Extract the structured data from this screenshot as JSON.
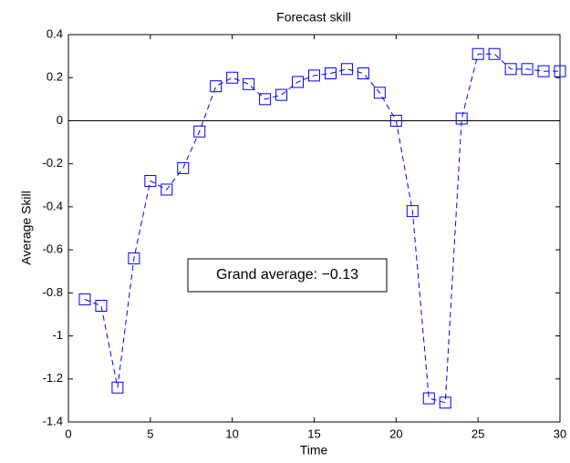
{
  "chart_data": {
    "type": "line",
    "title": "Forecast skill",
    "x_label": "Time",
    "y_label": "Average Skill",
    "annotation": "Grand average: −0.13",
    "x": [
      1,
      2,
      3,
      4,
      5,
      6,
      7,
      8,
      9,
      10,
      11,
      12,
      13,
      14,
      15,
      16,
      17,
      18,
      19,
      20,
      21,
      22,
      23,
      24,
      25,
      26,
      27,
      28,
      29,
      30
    ],
    "series": [
      {
        "color": "#0000ff",
        "marker": "square",
        "line_style": "dashed",
        "values": [
          -0.83,
          -0.86,
          -1.24,
          -0.64,
          -0.28,
          -0.32,
          -0.22,
          -0.05,
          0.16,
          0.2,
          0.17,
          0.1,
          0.12,
          0.18,
          0.21,
          0.22,
          0.24,
          0.22,
          0.13,
          0,
          -0.42,
          -1.29,
          -1.31,
          0.01,
          0.31,
          0.31,
          0.24,
          0.24,
          0.23,
          0.23
        ]
      }
    ],
    "reference_line": 0,
    "xlim": [
      0,
      30
    ],
    "xticks": [
      0,
      5,
      10,
      15,
      20,
      25,
      30
    ],
    "ylim": [
      -1.4,
      0.4
    ],
    "yticks": [
      -1.4,
      -1.2,
      -1,
      -0.8,
      -0.6,
      -0.4,
      -0.2,
      0,
      0.2,
      0.4
    ],
    "grid": false
  }
}
